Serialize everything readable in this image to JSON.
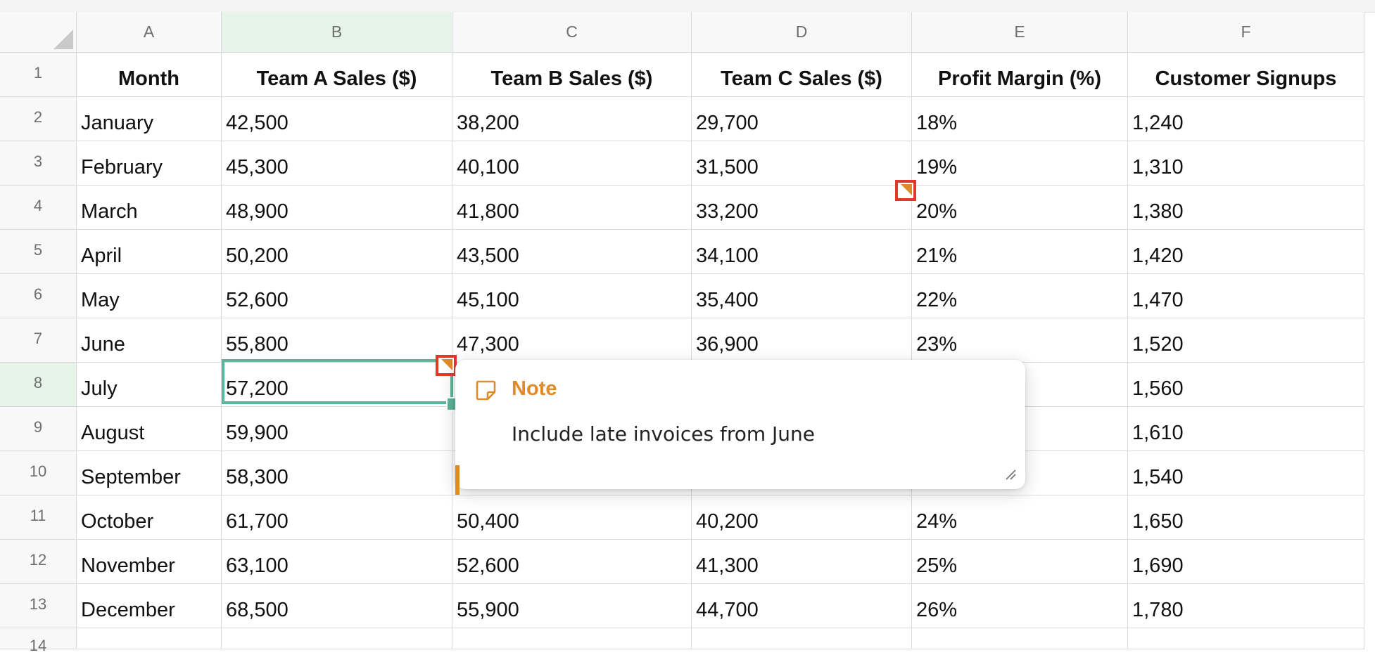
{
  "sheet": {
    "columns": [
      "A",
      "B",
      "C",
      "D",
      "E",
      "F"
    ],
    "active_column": "B",
    "active_row": "8",
    "header_row": {
      "row_number": "1",
      "cells": [
        "Month",
        "Team A Sales ($)",
        "Team B Sales ($)",
        "Team C Sales ($)",
        "Profit Margin (%)",
        "Customer Signups"
      ]
    },
    "rows": [
      {
        "num": "2",
        "cells": [
          "January",
          "42,500",
          "38,200",
          "29,700",
          "18%",
          "1,240"
        ]
      },
      {
        "num": "3",
        "cells": [
          "February",
          "45,300",
          "40,100",
          "31,500",
          "19%",
          "1,310"
        ]
      },
      {
        "num": "4",
        "cells": [
          "March",
          "48,900",
          "41,800",
          "33,200",
          "20%",
          "1,380"
        ]
      },
      {
        "num": "5",
        "cells": [
          "April",
          "50,200",
          "43,500",
          "34,100",
          "21%",
          "1,420"
        ]
      },
      {
        "num": "6",
        "cells": [
          "May",
          "52,600",
          "45,100",
          "35,400",
          "22%",
          "1,470"
        ]
      },
      {
        "num": "7",
        "cells": [
          "June",
          "55,800",
          "47,300",
          "36,900",
          "23%",
          "1,520"
        ]
      },
      {
        "num": "8",
        "cells": [
          "July",
          "57,200",
          "",
          "",
          "",
          "1,560"
        ]
      },
      {
        "num": "9",
        "cells": [
          "August",
          "59,900",
          "",
          "",
          "",
          "1,610"
        ]
      },
      {
        "num": "10",
        "cells": [
          "September",
          "58,300",
          "",
          "",
          "",
          "1,540"
        ]
      },
      {
        "num": "11",
        "cells": [
          "October",
          "61,700",
          "50,400",
          "40,200",
          "24%",
          "1,650"
        ]
      },
      {
        "num": "12",
        "cells": [
          "November",
          "63,100",
          "52,600",
          "41,300",
          "25%",
          "1,690"
        ]
      },
      {
        "num": "13",
        "cells": [
          "December",
          "68,500",
          "55,900",
          "44,700",
          "26%",
          "1,780"
        ]
      }
    ],
    "partial_row_number": "14"
  },
  "note": {
    "title": "Note",
    "body": "Include late invoices from June",
    "icon": "sticky-note-icon",
    "accent_color": "#e08a2c"
  },
  "colors": {
    "selection": "#5eb39a",
    "marker_highlight": "#e0392b",
    "active_header_bg": "#e6f4ea"
  }
}
